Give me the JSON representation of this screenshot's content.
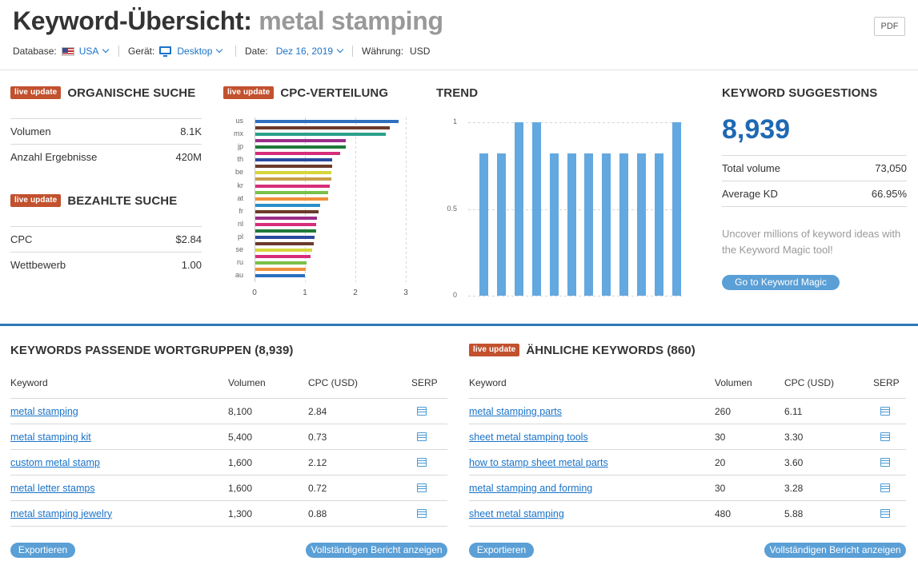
{
  "header": {
    "title_prefix": "Keyword-Übersicht:",
    "keyword": "metal stamping",
    "pdf_label": "PDF",
    "database_label": "Database:",
    "database_value": "USA",
    "device_label": "Gerät:",
    "device_value": "Desktop",
    "date_label": "Date:",
    "date_value": "Dez 16, 2019",
    "currency_label": "Währung:",
    "currency_value": "USD"
  },
  "live_badge": "live update",
  "organic": {
    "heading": "ORGANISCHE SUCHE",
    "rows": [
      {
        "label": "Volumen",
        "value": "8.1K"
      },
      {
        "label": "Anzahl Ergebnisse",
        "value": "420M"
      }
    ]
  },
  "paid": {
    "heading": "BEZAHLTE SUCHE",
    "rows": [
      {
        "label": "CPC",
        "value": "$2.84"
      },
      {
        "label": "Wettbewerb",
        "value": "1.00"
      }
    ]
  },
  "cpc": {
    "heading": "CPC-VERTEILUNG",
    "x_ticks": [
      "0",
      "1",
      "2",
      "3"
    ],
    "y_labels": [
      "us",
      "mx",
      "jp",
      "th",
      "be",
      "kr",
      "at",
      "fr",
      "nl",
      "pl",
      "se",
      "ru",
      "au"
    ]
  },
  "trend": {
    "heading": "TREND",
    "y_ticks": [
      "1",
      "0.5",
      "0"
    ]
  },
  "suggestions": {
    "heading": "KEYWORD SUGGESTIONS",
    "count": "8,939",
    "rows": [
      {
        "label": "Total volume",
        "value": "73,050"
      },
      {
        "label": "Average KD",
        "value": "66.95%"
      }
    ],
    "note_line1": "Uncover millions of keyword ideas with",
    "note_line2": "the Keyword Magic tool!",
    "button": "Go to Keyword Magic"
  },
  "phrase_match": {
    "heading": "KEYWORDS PASSENDE WORTGRUPPEN (8,939)",
    "columns": [
      "Keyword",
      "Volumen",
      "CPC (USD)",
      "SERP"
    ],
    "rows": [
      {
        "keyword": "metal stamping",
        "volume": "8,100",
        "cpc": "2.84"
      },
      {
        "keyword": "metal stamping kit",
        "volume": "5,400",
        "cpc": "0.73"
      },
      {
        "keyword": "custom metal stamp",
        "volume": "1,600",
        "cpc": "2.12"
      },
      {
        "keyword": "metal letter stamps",
        "volume": "1,600",
        "cpc": "0.72"
      },
      {
        "keyword": "metal stamping jewelry",
        "volume": "1,300",
        "cpc": "0.88"
      }
    ],
    "export_label": "Exportieren",
    "full_report_label": "Vollständigen Bericht anzeigen"
  },
  "related": {
    "heading": "ÄHNLICHE KEYWORDS (860)",
    "columns": [
      "Keyword",
      "Volumen",
      "CPC (USD)",
      "SERP"
    ],
    "rows": [
      {
        "keyword": "metal stamping parts",
        "volume": "260",
        "cpc": "6.11"
      },
      {
        "keyword": "sheet metal stamping tools",
        "volume": "30",
        "cpc": "3.30"
      },
      {
        "keyword": "how to stamp sheet metal parts",
        "volume": "20",
        "cpc": "3.60"
      },
      {
        "keyword": "metal stamping and forming",
        "volume": "30",
        "cpc": "3.28"
      },
      {
        "keyword": "sheet metal stamping",
        "volume": "480",
        "cpc": "5.88"
      }
    ],
    "export_label": "Exportieren",
    "full_report_label": "Vollständigen Bericht anzeigen"
  },
  "chart_data": [
    {
      "type": "bar",
      "orientation": "horizontal",
      "title": "CPC-VERTEILUNG",
      "categories": [
        "us",
        "",
        "mx",
        "",
        "jp",
        "",
        "th",
        "",
        "be",
        "",
        "kr",
        "",
        "at",
        "",
        "fr",
        "",
        "nl",
        "",
        "pl",
        "",
        "se",
        "",
        "ru",
        "",
        "au"
      ],
      "values": [
        2.84,
        2.67,
        2.58,
        1.8,
        1.8,
        1.68,
        1.52,
        1.52,
        1.5,
        1.5,
        1.48,
        1.45,
        1.45,
        1.28,
        1.25,
        1.22,
        1.2,
        1.2,
        1.18,
        1.16,
        1.12,
        1.1,
        1.02,
        1.0,
        0.99
      ],
      "colors": [
        "#2f6fbf",
        "#6b3a2a",
        "#2aa18a",
        "#9c2d8a",
        "#1f7a3a",
        "#d62d7a",
        "#2a4a9f",
        "#6b3a2a",
        "#d6d63a",
        "#c8a04a",
        "#d62d7a",
        "#7ac04a",
        "#f0903a",
        "#2a90c8",
        "#6b3a2a",
        "#9c2d8a",
        "#d62d7a",
        "#1f7a3a",
        "#2a4a9f",
        "#6b3a2a",
        "#d6d63a",
        "#d62d7a",
        "#7ac04a",
        "#f0903a",
        "#2a6fbf"
      ],
      "xlim": [
        0,
        3
      ],
      "grid": true
    },
    {
      "type": "bar",
      "title": "TREND",
      "values": [
        0.82,
        0.82,
        1.0,
        1.0,
        0.82,
        0.82,
        0.82,
        0.82,
        0.82,
        0.82,
        0.82,
        1.0
      ],
      "ylim": [
        0,
        1
      ],
      "color": "#64a8e0"
    }
  ]
}
